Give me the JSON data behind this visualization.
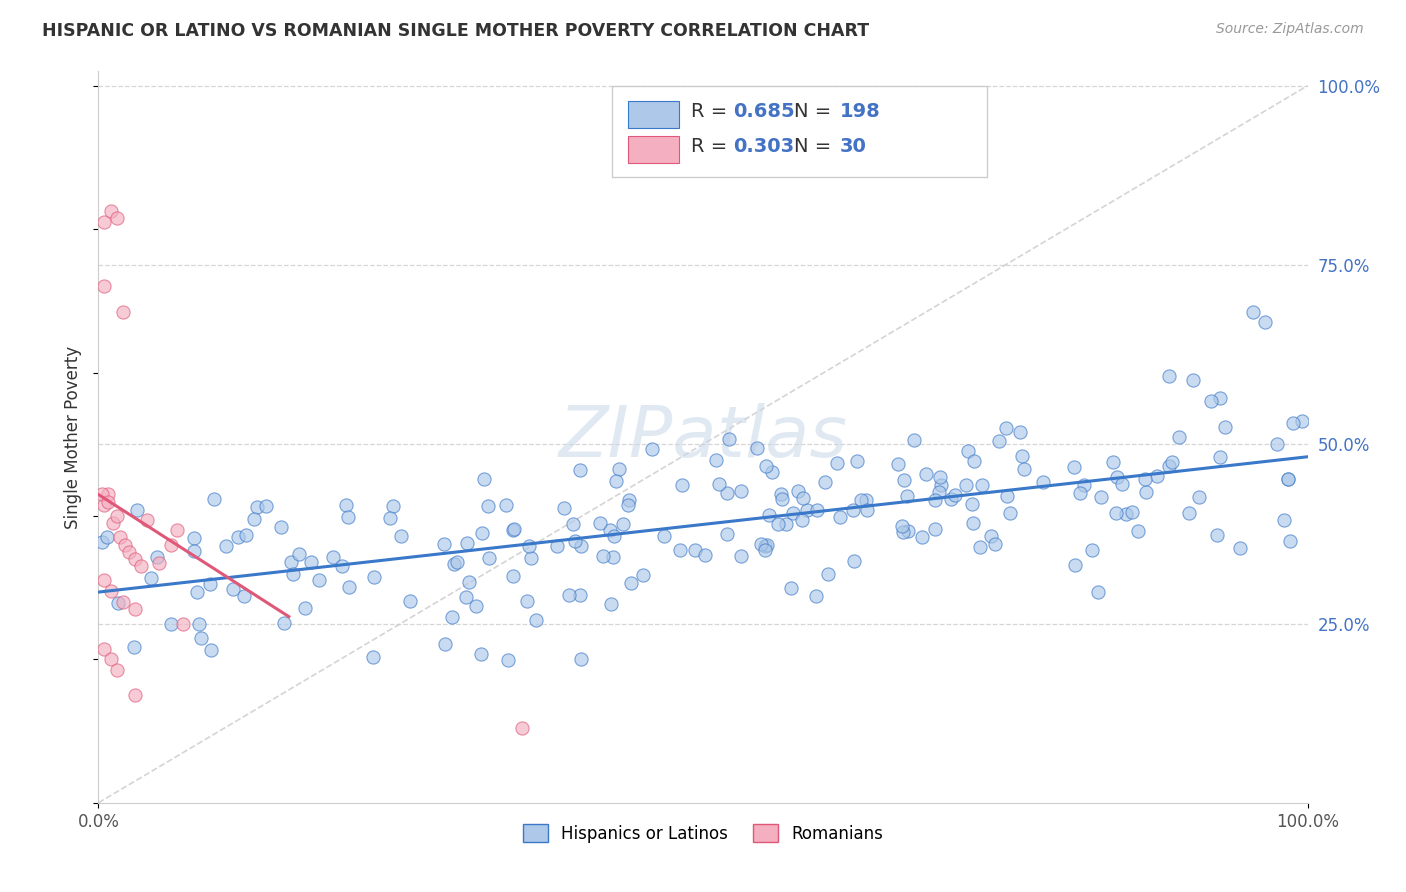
{
  "title": "HISPANIC OR LATINO VS ROMANIAN SINGLE MOTHER POVERTY CORRELATION CHART",
  "source": "Source: ZipAtlas.com",
  "ylabel": "Single Mother Poverty",
  "blue_R": 0.685,
  "blue_N": 198,
  "pink_R": 0.303,
  "pink_N": 30,
  "blue_color": "#adc8e8",
  "pink_color": "#f4afc0",
  "blue_line_color": "#3a78c9",
  "pink_line_color": "#e05878",
  "watermark_color": "#c8d8e8",
  "background_color": "#ffffff",
  "grid_color": "#cccccc",
  "title_color": "#333333",
  "legend_label_blue": "Hispanics or Latinos",
  "legend_label_pink": "Romanians",
  "xlim": [
    0,
    1
  ],
  "ylim": [
    0,
    1
  ],
  "yticks": [
    0.25,
    0.5,
    0.75,
    1.0
  ],
  "ytick_labels": [
    "25.0%",
    "50.0%",
    "75.0%",
    "100.0%"
  ],
  "xtick_labels": [
    "0.0%",
    "100.0%"
  ]
}
